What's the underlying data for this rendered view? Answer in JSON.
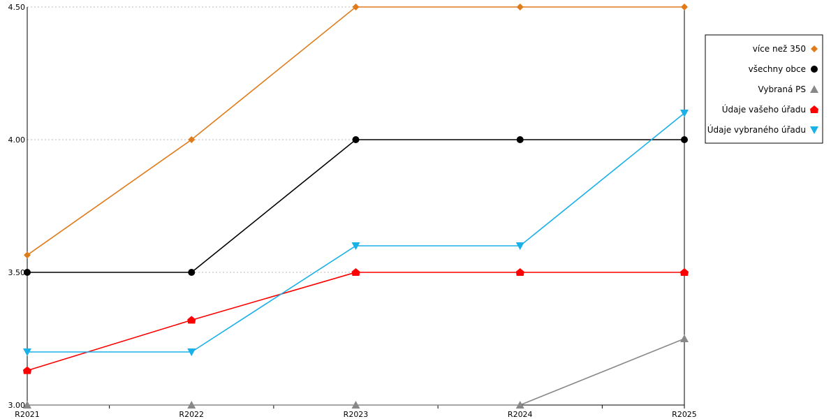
{
  "chart_data": {
    "type": "line",
    "categories": [
      "R2021",
      "R2022",
      "R2023",
      "R2024",
      "R2025"
    ],
    "ylim": [
      3.0,
      4.5
    ],
    "y_ticks": [
      "3.00",
      "3.50",
      "4.00",
      "4.50"
    ],
    "grid": "horizontal dotted",
    "legend_position": "right",
    "series": [
      {
        "name": "více než 350",
        "color": "#e07b1a",
        "marker": "diamond",
        "values": [
          3.565,
          4.0,
          4.5,
          4.5,
          4.5
        ]
      },
      {
        "name": "všechny obce",
        "color": "#000000",
        "marker": "circle",
        "values": [
          3.5,
          3.5,
          4.0,
          4.0,
          4.0
        ]
      },
      {
        "name": "Vybraná PS",
        "color": "#888888",
        "marker": "triangle-up",
        "values": [
          3.0,
          3.0,
          3.0,
          3.0,
          3.25
        ]
      },
      {
        "name": "Údaje vašeho úřadu",
        "color": "#ff0000",
        "marker": "house",
        "values": [
          3.13,
          3.32,
          3.5,
          3.5,
          3.5
        ]
      },
      {
        "name": "Údaje vybraného úřadu",
        "color": "#1ab0e8",
        "marker": "triangle-down",
        "values": [
          3.2,
          3.2,
          3.6,
          3.6,
          4.1
        ]
      }
    ]
  }
}
